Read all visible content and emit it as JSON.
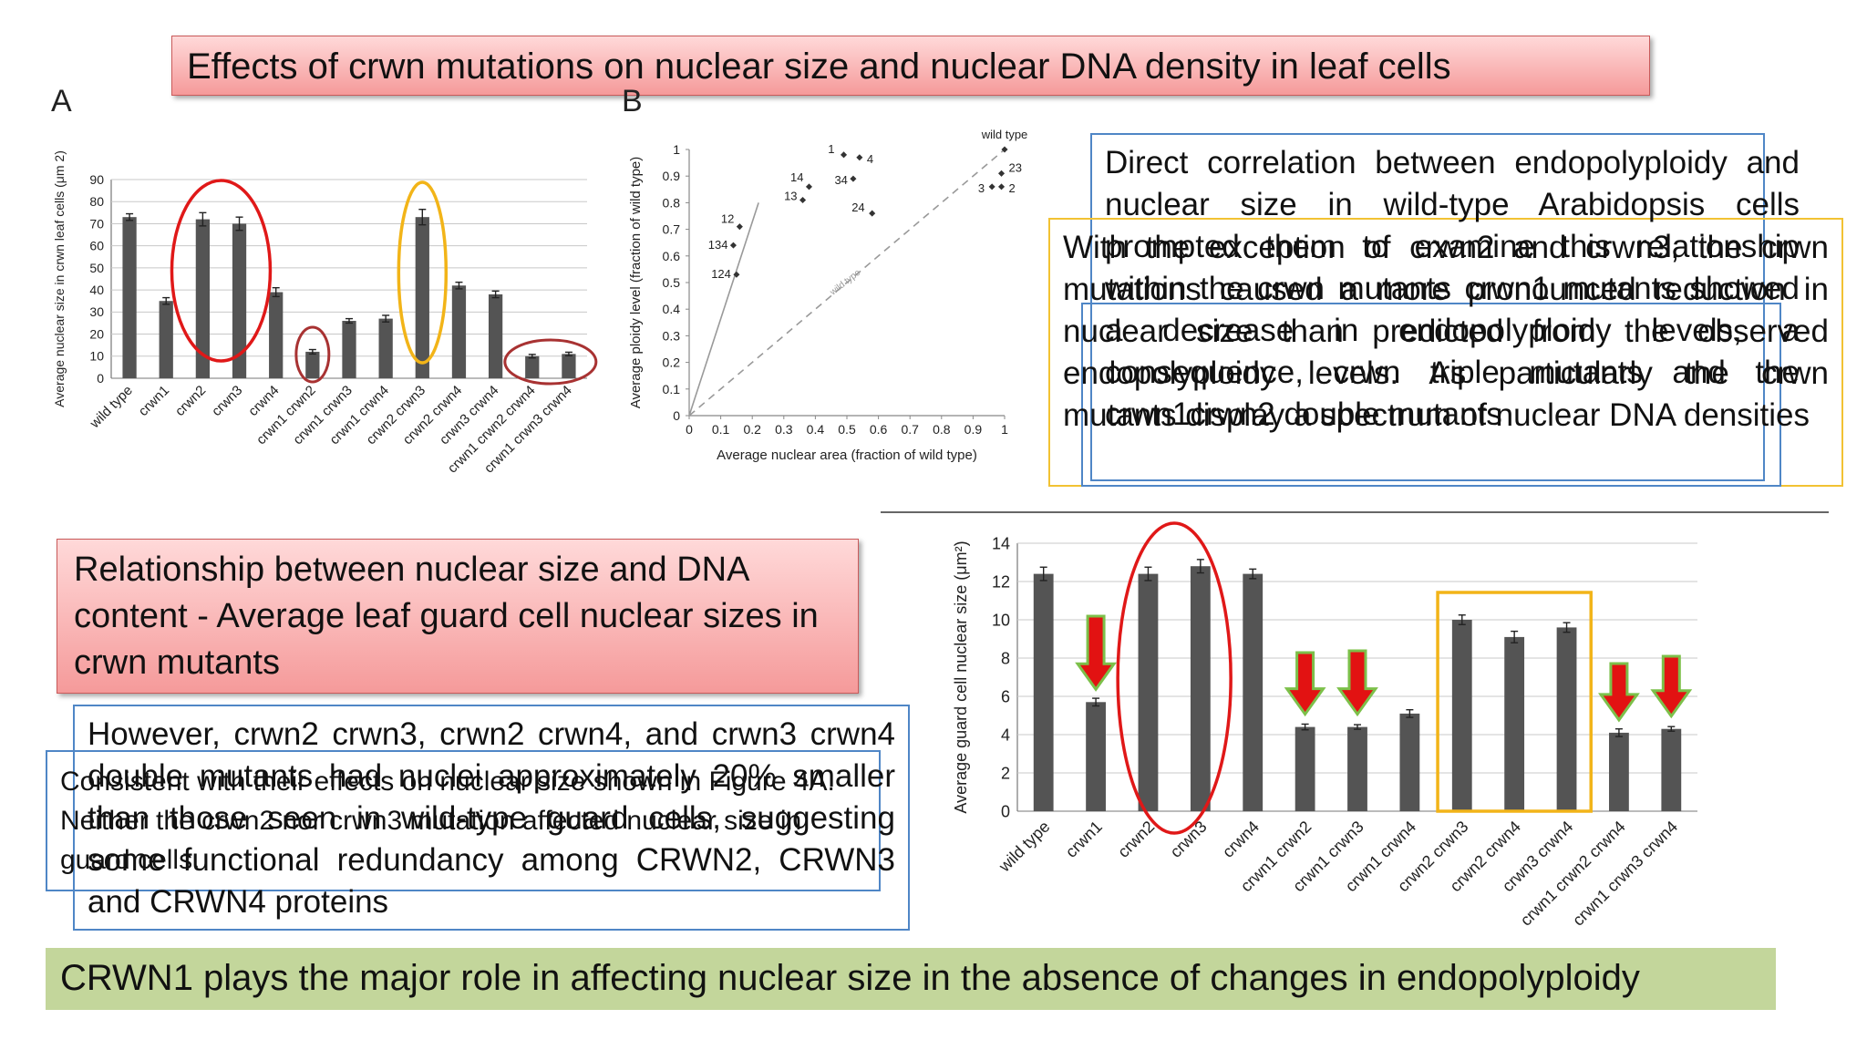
{
  "slide_title": "Effects of crwn mutations on nuclear size and nuclear DNA density in leaf cells",
  "panel_a_letter": "A",
  "panel_b_letter": "B",
  "section2_title": "Relationship between nuclear size and DNA content - Average leaf guard cell nuclear sizes in crwn mutants",
  "text_blue_right": "Direct correlation between endopolyploidy and nuclear size in wild-type Arabidopsis cells prompted them to examine this relationship within the crwn mutants crwn1 mutants showed a decrease in endopolyploidy levels, a consequence, crwn triple mutants and the crwn1crwn2 double mutants",
  "text_yellow_right": "With the exception of crwn2 and crwn3, the crwn mutations caused a more pronounced reduction in nuclear size than predicted from the observed endopolyploidy levels. As particularly the crwn mutants display a spectrum of nuclear DNA densities",
  "text_blue_left_top": "However, crwn2 crwn3, crwn2 crwn4, and crwn3 crwn4 double mutants had nuclei approximately 20% smaller than those seen in wild-type guard cells, suggesting some functional redundancy among CRWN2, CRWN3 and CRWN4 proteins",
  "text_blue_left_overlap": "Consistent with their effects on nuclear size shown in Figure 4A. Neither the crwn2 nor crwn3 mutation affected nuclear size in guard cells.",
  "conclusion": "CRWN1 plays the major role in affecting nuclear size in the absence of changes in endopolyploidy",
  "colors": {
    "bar": "#545454",
    "red_circle": "#e01818",
    "yellow_circle": "#f2b418",
    "dark_red_circle": "#a83232",
    "arrow_fill": "#e21212",
    "arrow_stroke": "#7cc04a",
    "conclusion_bg": "#c3d69b",
    "blue_box": "#4f86c6",
    "yellow_box": "#f2c233"
  },
  "chart_data": [
    {
      "type": "bar",
      "ylabel": "Average nuclear size in crwn leaf cells (μm 2)",
      "ylim": [
        0,
        90
      ],
      "yticks": [
        "0",
        "10",
        "20",
        "30",
        "40",
        "50",
        "60",
        "70",
        "80",
        "90"
      ],
      "grid": true,
      "categories": [
        "wild type",
        "crwn1",
        "crwn2",
        "crwn3",
        "crwn4",
        "crwn1 crwn2",
        "crwn1 crwn3",
        "crwn1 crwn4",
        "crwn2 crwn3",
        "crwn2 crwn4",
        "crwn3 crwn4",
        "crwn1 crwn2 crwn4",
        "crwn1 crwn3 crwn4"
      ],
      "values": [
        73,
        35,
        72,
        70,
        39,
        12,
        26,
        27,
        73,
        42,
        38,
        10,
        11
      ],
      "errors": [
        1.5,
        1.5,
        3,
        3,
        2,
        1,
        1,
        1.5,
        3.5,
        1.5,
        1.5,
        0.8,
        0.8
      ]
    },
    {
      "type": "scatter",
      "xlabel": "Average nuclear area (fraction of wild type)",
      "ylabel": "Average ploidy level (fraction of wild type)",
      "xlim": [
        0,
        1
      ],
      "ylim": [
        0,
        1
      ],
      "xticks": [
        "0",
        "0.1",
        "0.2",
        "0.3",
        "0.4",
        "0.5",
        "0.6",
        "0.7",
        "0.8",
        "0.9",
        "1"
      ],
      "yticks": [
        "0",
        "0.1",
        "0.2",
        "0.3",
        "0.4",
        "0.5",
        "0.6",
        "0.7",
        "0.8",
        "0.9",
        "1"
      ],
      "points": [
        {
          "label": "wild type",
          "x": 1.0,
          "y": 1.0
        },
        {
          "label": "1",
          "x": 0.49,
          "y": 0.98
        },
        {
          "label": "4",
          "x": 0.54,
          "y": 0.97
        },
        {
          "label": "14",
          "x": 0.38,
          "y": 0.86
        },
        {
          "label": "34",
          "x": 0.52,
          "y": 0.89
        },
        {
          "label": "13",
          "x": 0.36,
          "y": 0.81
        },
        {
          "label": "24",
          "x": 0.58,
          "y": 0.76
        },
        {
          "label": "23",
          "x": 0.99,
          "y": 0.91
        },
        {
          "label": "3",
          "x": 0.96,
          "y": 0.86
        },
        {
          "label": "2",
          "x": 0.99,
          "y": 0.86
        },
        {
          "label": "12",
          "x": 0.16,
          "y": 0.71
        },
        {
          "label": "134",
          "x": 0.14,
          "y": 0.64
        },
        {
          "label": "124",
          "x": 0.15,
          "y": 0.53
        }
      ],
      "lines": [
        {
          "name": "wild type",
          "from": [
            0,
            0
          ],
          "to": [
            1,
            1
          ],
          "style": "dashed"
        },
        {
          "name": "",
          "from": [
            0,
            0
          ],
          "to": [
            0.22,
            0.8
          ],
          "style": "solid"
        }
      ],
      "annotations": [
        "wild type",
        "wild type"
      ]
    },
    {
      "type": "bar",
      "ylabel": "Average guard cell nuclear size (μm²)",
      "ylim": [
        0,
        14
      ],
      "yticks": [
        "0",
        "2",
        "4",
        "6",
        "8",
        "10",
        "12",
        "14"
      ],
      "grid": true,
      "categories": [
        "wild type",
        "crwn1",
        "crwn2",
        "crwn3",
        "crwn4",
        "crwn1 crwn2",
        "crwn1 crwn3",
        "crwn1 crwn4",
        "crwn2 crwn3",
        "crwn2 crwn4",
        "crwn3 crwn4",
        "crwn1 crwn2 crwn4",
        "crwn1 crwn3 crwn4"
      ],
      "values": [
        12.4,
        5.7,
        12.4,
        12.8,
        12.4,
        4.4,
        4.4,
        5.1,
        10.0,
        9.1,
        9.6,
        4.1,
        4.3
      ],
      "errors": [
        0.35,
        0.2,
        0.35,
        0.35,
        0.25,
        0.15,
        0.12,
        0.2,
        0.25,
        0.3,
        0.25,
        0.2,
        0.12
      ]
    }
  ]
}
